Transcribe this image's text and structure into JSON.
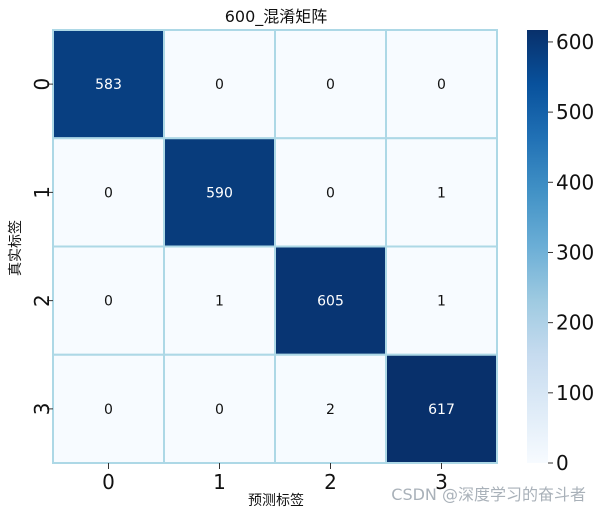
{
  "chart_data": {
    "type": "heatmap",
    "title": "600_混淆矩阵",
    "xlabel": "预测标签",
    "ylabel": "真实标签",
    "x_ticks": [
      "0",
      "1",
      "2",
      "3"
    ],
    "y_ticks": [
      "0",
      "1",
      "2",
      "3"
    ],
    "matrix": [
      [
        583,
        0,
        0,
        0
      ],
      [
        0,
        590,
        0,
        1
      ],
      [
        0,
        1,
        605,
        1
      ],
      [
        0,
        0,
        2,
        617
      ]
    ],
    "colormap": "Blues",
    "value_range": [
      0,
      617
    ],
    "colorbar_ticks": [
      0,
      100,
      200,
      300,
      400,
      500,
      600
    ],
    "cell_border_color": "#add8e6"
  },
  "watermark": "CSDN @深度学习的奋斗者"
}
